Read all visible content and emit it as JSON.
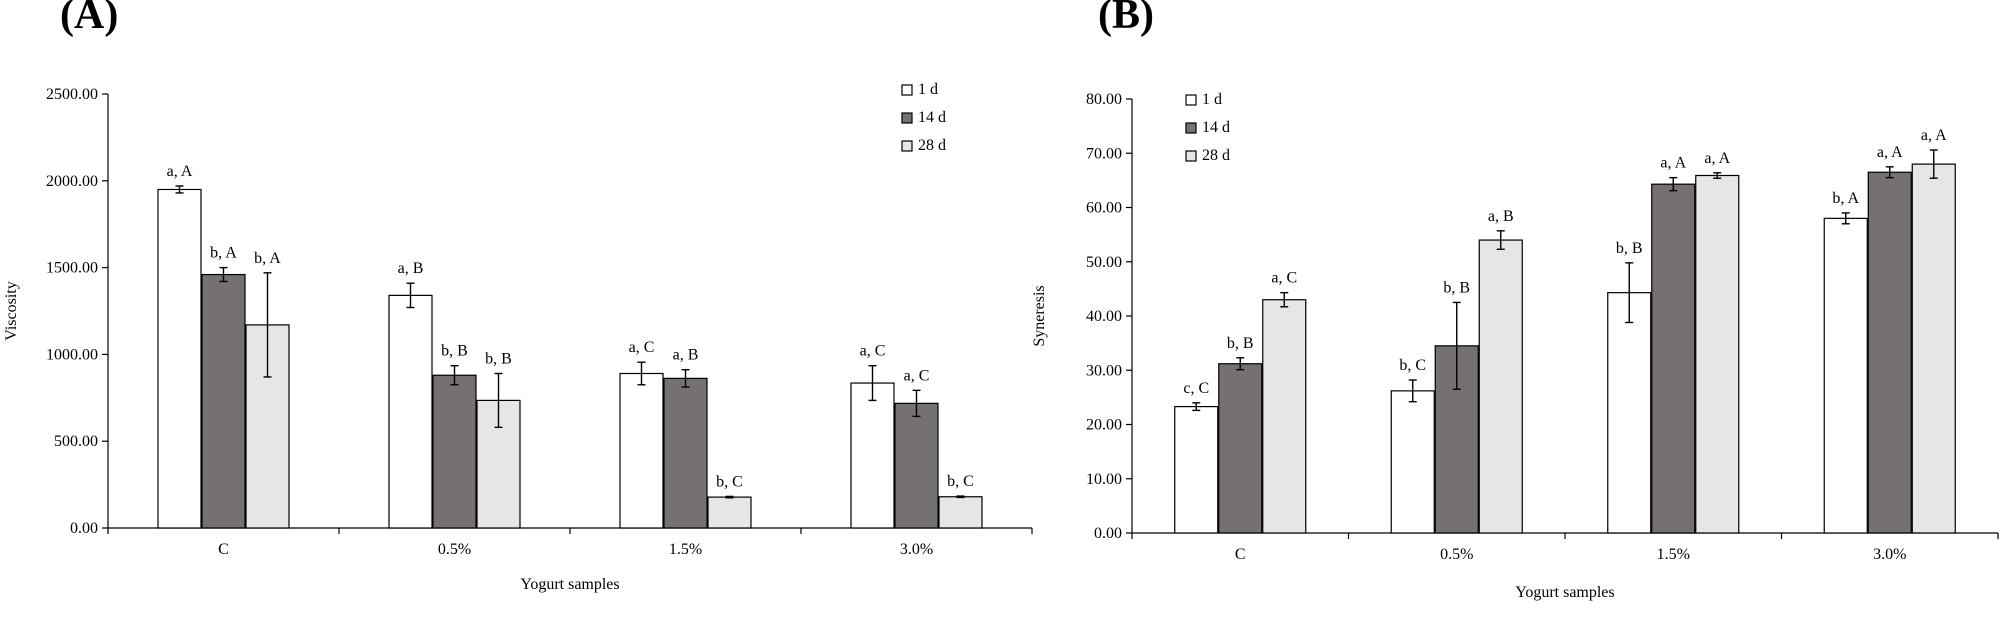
{
  "chart_data": [
    {
      "type": "bar",
      "panel_label": "(A)",
      "categories": [
        "C",
        "0.5%",
        "1.5%",
        "3.0%"
      ],
      "xlabel": "Yogurt samples",
      "ylabel": "Viscosity",
      "ylim": [
        0,
        2500
      ],
      "yticks": [
        "0.00",
        "500.00",
        "1000.00",
        "1500.00",
        "2000.00",
        "2500.00"
      ],
      "legend": "top-right",
      "series": [
        {
          "name": "1 d",
          "color": "#ffffff",
          "values": [
            1950,
            1340,
            890,
            835
          ],
          "errors": [
            20,
            70,
            65,
            100
          ],
          "labels": [
            "a, A",
            "a, B",
            "a, C",
            "a, C"
          ]
        },
        {
          "name": "14 d",
          "color": "#767171",
          "values": [
            1460,
            880,
            862,
            718
          ],
          "errors": [
            40,
            55,
            50,
            75
          ],
          "labels": [
            "b, A",
            "b, B",
            "a, B",
            "a, C"
          ]
        },
        {
          "name": "28 d",
          "color": "#e6e6e6",
          "values": [
            1170,
            735,
            178,
            180
          ],
          "errors": [
            300,
            155,
            4,
            4
          ],
          "labels": [
            "b, A",
            "b, B",
            "b, C",
            "b, C"
          ]
        }
      ]
    },
    {
      "type": "bar",
      "panel_label": "(B)",
      "categories": [
        "C",
        "0.5%",
        "1.5%",
        "3.0%"
      ],
      "xlabel": "Yogurt samples",
      "ylabel": "Syneresis",
      "ylim": [
        0,
        80
      ],
      "yticks": [
        "0.00",
        "10.00",
        "20.00",
        "30.00",
        "40.00",
        "50.00",
        "60.00",
        "70.00",
        "80.00"
      ],
      "legend": "top-left",
      "series": [
        {
          "name": "1 d",
          "color": "#ffffff",
          "values": [
            23.3,
            26.2,
            44.3,
            58.0
          ],
          "errors": [
            0.7,
            2.0,
            5.5,
            1.0
          ],
          "labels": [
            "c, C",
            "b, C",
            "b, B",
            "b, A"
          ]
        },
        {
          "name": "14 d",
          "color": "#767171",
          "values": [
            31.2,
            34.5,
            64.3,
            66.5
          ],
          "errors": [
            1.1,
            8.0,
            1.2,
            1.0
          ],
          "labels": [
            "b, B",
            "b, B",
            "a, A",
            "a, A"
          ]
        },
        {
          "name": "28 d",
          "color": "#e6e6e6",
          "values": [
            43.0,
            54.0,
            65.9,
            68.0
          ],
          "errors": [
            1.3,
            1.7,
            0.5,
            2.6
          ],
          "labels": [
            "a, C",
            "a, B",
            "a, A",
            "a, A"
          ]
        }
      ]
    }
  ]
}
